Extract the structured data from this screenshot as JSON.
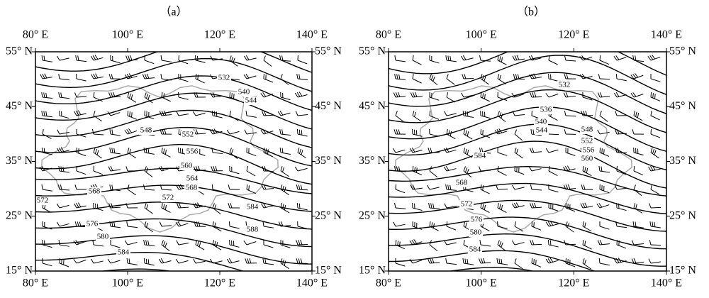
{
  "panels": [
    {
      "label": "（a）",
      "lon_labels": [
        "80° E",
        "100° E",
        "120° E",
        "140° E"
      ],
      "lat_labels": [
        "55° N",
        "45° N",
        "35° N",
        "25° N",
        "15° N"
      ],
      "contour_labels": [
        "532",
        "540",
        "544",
        "548",
        "552",
        "556",
        "560",
        "564",
        "568",
        "568",
        "572",
        "572",
        "576",
        "580",
        "584",
        "584",
        "588"
      ]
    },
    {
      "label": "（b）",
      "lon_labels": [
        "80° E",
        "100° E",
        "120° E",
        "140° E"
      ],
      "lat_labels": [
        "55° N",
        "45° N",
        "35° N",
        "25° N",
        "15° N"
      ],
      "contour_labels": [
        "532",
        "536",
        "540",
        "544",
        "548",
        "552",
        "556",
        "560",
        "584",
        "568",
        "572",
        "576",
        "580",
        "584"
      ]
    }
  ]
}
